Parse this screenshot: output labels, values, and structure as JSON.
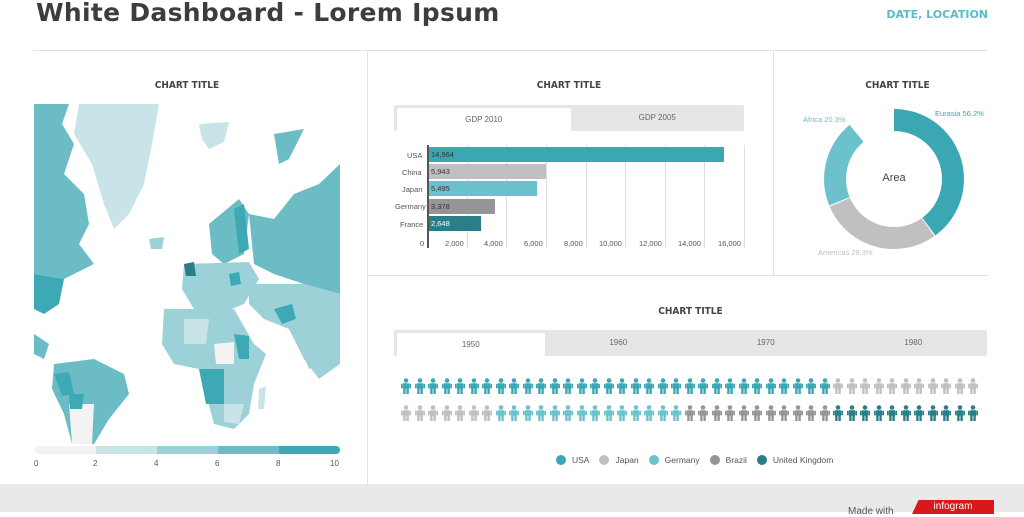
{
  "header": {
    "title": "White Dashboard - Lorem Ipsum",
    "date_location": "DATE, LOCATION"
  },
  "colors": {
    "teal": "#3ba7b3",
    "light_teal": "#6bc2cc",
    "pale_teal": "#c5e3e7",
    "gray": "#c0c0c0",
    "dark_gray": "#959595",
    "dark_teal": "#2a7e87",
    "accent": "#5bbcc8"
  },
  "map": {
    "title": "CHART TITLE",
    "scale_labels": [
      "0",
      "2",
      "4",
      "6",
      "8",
      "10"
    ],
    "scale_colors": [
      "#f3f3f3",
      "#c9e4e8",
      "#9dd1d8",
      "#6cbcc6",
      "#3ca9b5"
    ]
  },
  "bar": {
    "title": "CHART TITLE",
    "tabs": [
      "GDP 2010",
      "GDP 2005"
    ],
    "active_tab": 0,
    "xticks": [
      "0",
      "2,000",
      "4,000",
      "6,000",
      "8,000",
      "10,000",
      "12,000",
      "14,000",
      "16,000"
    ]
  },
  "donut": {
    "title": "CHART TITLE",
    "center": "Area",
    "labels": [
      "Eurasia 56.2%",
      "Africa 20.3%",
      "Americas 28.3%"
    ]
  },
  "picto": {
    "title": "CHART TITLE",
    "tabs": [
      "1950",
      "1960",
      "1970",
      "1980"
    ],
    "active_tab": 0,
    "legend": [
      "USA",
      "Japan",
      "Germany",
      "Brazil",
      "United Kingdom"
    ]
  },
  "footer": {
    "made_with": "Made with",
    "brand": "infogram"
  },
  "chart_data": [
    {
      "type": "bar",
      "title": "CHART TITLE",
      "categories": [
        "USA",
        "China",
        "Japan",
        "Germany",
        "France"
      ],
      "values": [
        14964,
        5943,
        5495,
        3378,
        2648
      ],
      "colors": [
        "#3ba7b3",
        "#c0c0c0",
        "#6bc2cc",
        "#959595",
        "#2a7e87"
      ],
      "xlim": [
        0,
        16000
      ],
      "xticks": [
        0,
        2000,
        4000,
        6000,
        8000,
        10000,
        12000,
        14000,
        16000
      ],
      "series_tabs": [
        "GDP 2010",
        "GDP 2005"
      ]
    },
    {
      "type": "pie",
      "title": "CHART TITLE",
      "center_label": "Area",
      "categories": [
        "Eurasia",
        "Americas",
        "Africa"
      ],
      "values": [
        56.2,
        28.3,
        20.3
      ],
      "colors": [
        "#3ba7b3",
        "#c0c0c0",
        "#6bc2cc"
      ]
    },
    {
      "type": "table",
      "title": "CHART TITLE",
      "subtype": "pictograph",
      "tabs": [
        "1950",
        "1960",
        "1970",
        "1980"
      ],
      "rows": [
        [
          {
            "name": "USA",
            "count": 32
          },
          {
            "name": "Japan",
            "count": 11
          }
        ],
        [
          {
            "name": "Japan",
            "count": 7
          },
          {
            "name": "Germany",
            "count": 14
          },
          {
            "name": "Brazil",
            "count": 11
          },
          {
            "name": "United Kingdom",
            "count": 11
          }
        ]
      ]
    },
    {
      "type": "heatmap",
      "title": "CHART TITLE",
      "subtype": "choropleth world map",
      "scale": [
        0,
        2,
        4,
        6,
        8,
        10
      ]
    }
  ]
}
